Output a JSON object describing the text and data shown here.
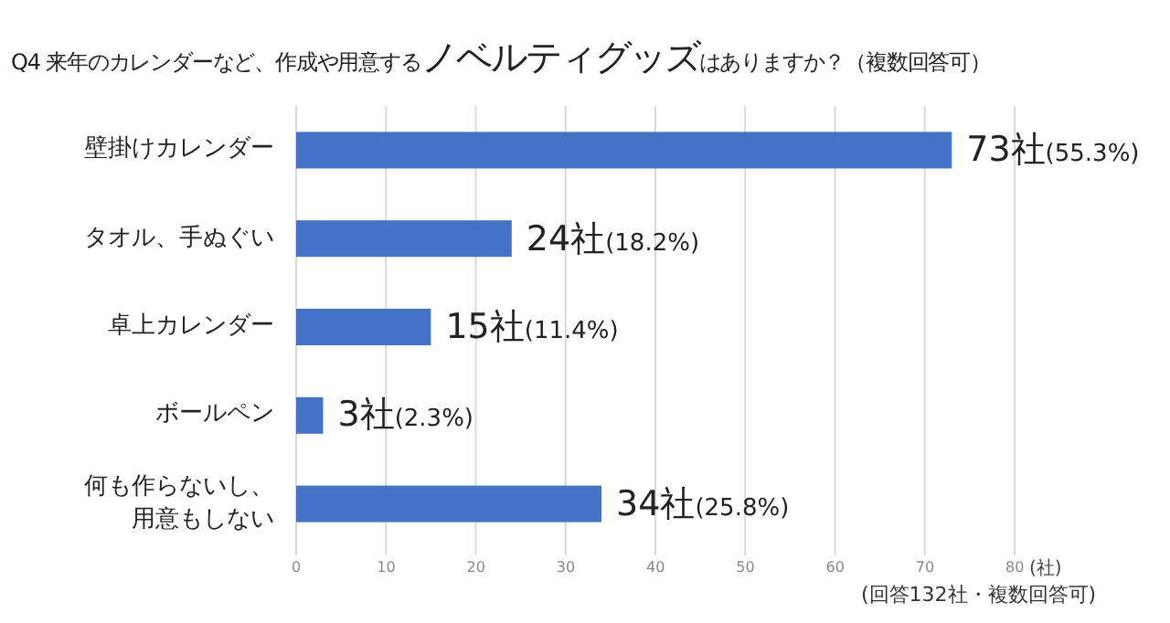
{
  "chart_data": {
    "type": "bar",
    "orientation": "horizontal",
    "title": "Q4  来年のカレンダーなど、作成や用意する**ノベルティグッズ**はありますか？（複数回答可）",
    "categories": [
      "壁掛けカレンダー",
      "タオル、手ぬぐい",
      "卓上カレンダー",
      "ボールペン",
      "何も作らないし、用意もしない"
    ],
    "values": [
      73,
      24,
      15,
      3,
      34
    ],
    "value_labels": [
      "73社(55.3%)",
      "24社(18.2%)",
      "15社(11.4%)",
      "3社(2.3%)",
      "34社(25.8%)"
    ],
    "color": "#4472c4",
    "xlim": [
      0,
      80
    ],
    "xticks": [
      0,
      10,
      20,
      30,
      40,
      50,
      60,
      70,
      80
    ],
    "grid": "x",
    "xlabel": "(社)",
    "annotations": [
      "(回答132社・複数回答可)"
    ]
  }
}
